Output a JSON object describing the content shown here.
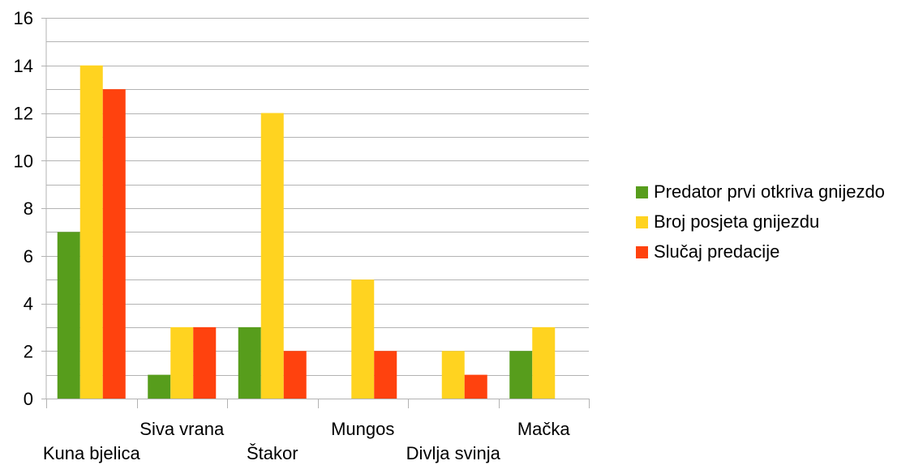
{
  "chart_data": {
    "type": "bar",
    "categories": [
      "Kuna bjelica",
      "Siva vrana",
      "Štakor",
      "Mungos",
      "Divlja svinja",
      "Mačka"
    ],
    "series": [
      {
        "name": "Predator prvi otkriva gnijezdo",
        "color": "#579d1c",
        "values": [
          7,
          1,
          3,
          0,
          0,
          2
        ]
      },
      {
        "name": "Broj posjeta gnijezdu",
        "color": "#ffd320",
        "values": [
          14,
          3,
          12,
          5,
          2,
          3
        ]
      },
      {
        "name": "Slučaj predacije",
        "color": "#ff420e",
        "values": [
          13,
          3,
          2,
          2,
          1,
          0
        ]
      }
    ],
    "ylim": [
      0,
      16
    ],
    "yticks": [
      0,
      2,
      4,
      6,
      8,
      10,
      12,
      14,
      16
    ],
    "minor_grid_step": 1,
    "grid": true,
    "legend_position": "right",
    "title": "",
    "xlabel": "",
    "ylabel": ""
  }
}
